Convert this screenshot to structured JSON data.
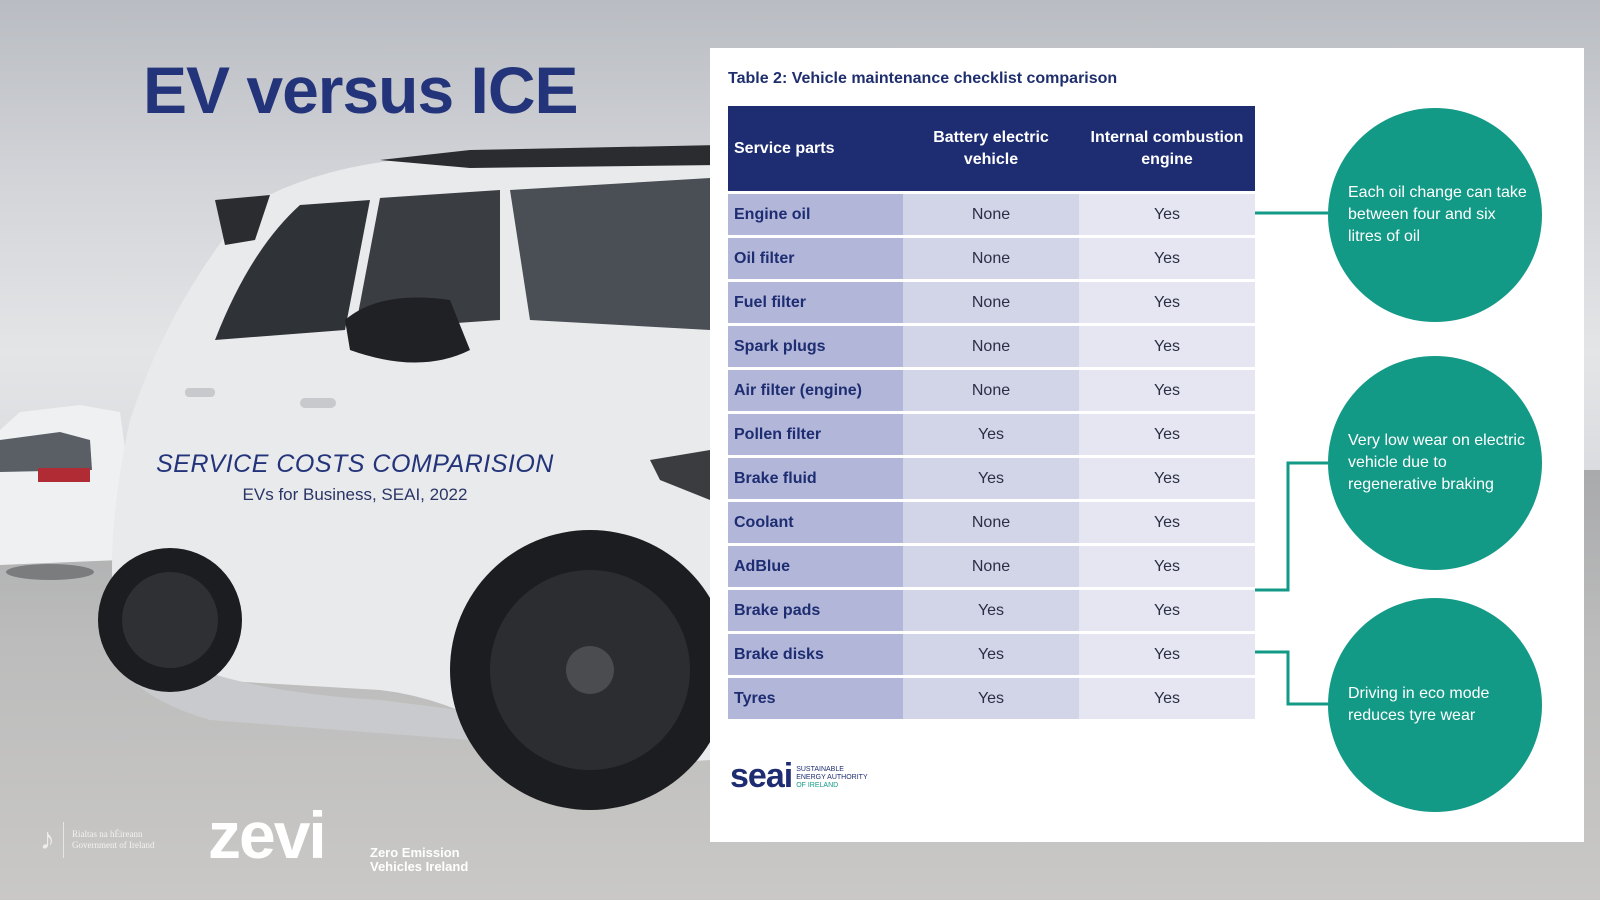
{
  "title": "EV versus ICE",
  "subtitle": "SERVICE COSTS COMPARISION",
  "source": "EVs for Business, SEAI, 2022",
  "table": {
    "caption": "Table 2: Vehicle maintenance checklist comparison",
    "headers": [
      "Service parts",
      "Battery electric vehicle",
      "Internal combustion engine"
    ],
    "rows": [
      [
        "Engine oil",
        "None",
        "Yes"
      ],
      [
        "Oil filter",
        "None",
        "Yes"
      ],
      [
        "Fuel filter",
        "None",
        "Yes"
      ],
      [
        "Spark plugs",
        "None",
        "Yes"
      ],
      [
        "Air filter (engine)",
        "None",
        "Yes"
      ],
      [
        "Pollen filter",
        "Yes",
        "Yes"
      ],
      [
        "Brake fluid",
        "Yes",
        "Yes"
      ],
      [
        "Coolant",
        "None",
        "Yes"
      ],
      [
        "AdBlue",
        "None",
        "Yes"
      ],
      [
        "Brake pads",
        "Yes",
        "Yes"
      ],
      [
        "Brake disks",
        "Yes",
        "Yes"
      ],
      [
        "Tyres",
        "Yes",
        "Yes"
      ]
    ]
  },
  "callouts": [
    "Each oil change can take between four and six litres of oil",
    "Very low wear on electric vehicle due to regenerative braking",
    "Driving in eco mode reduces tyre wear"
  ],
  "seai_logo": {
    "word": "seai",
    "tag_lines": [
      "SUSTAINABLE",
      "ENERGY AUTHORITY",
      "OF IRELAND"
    ]
  },
  "gov_logo": {
    "lines": [
      "Rialtas na hÉireann",
      "Government of Ireland"
    ]
  },
  "zevi_logo": {
    "word": "zevi",
    "tag_lines": [
      "Zero Emission",
      "Vehicles Ireland"
    ]
  },
  "colors": {
    "navy": "#1e2d72",
    "teal": "#139a86",
    "lavender": "#b2b6d8"
  }
}
